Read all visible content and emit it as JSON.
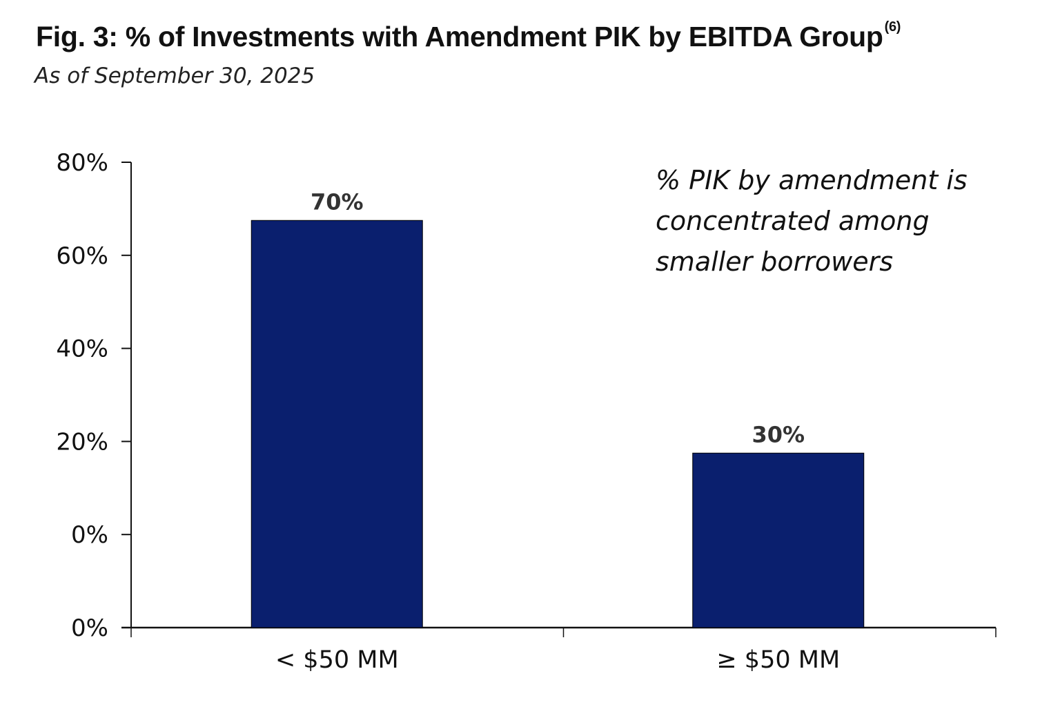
{
  "chart_data": {
    "type": "bar",
    "title": "Fig. 3: % of Investments with Amendment PIK by EBITDA Group",
    "title_superscript": "(6)",
    "subtitle": "As of September 30, 2025",
    "categories": [
      "< $50 MM",
      "≥ $50 MM"
    ],
    "values": [
      70,
      30
    ],
    "data_labels": [
      "70%",
      "30%"
    ],
    "y_tick_labels": [
      "80%",
      "60%",
      "40%",
      "20%",
      "0%",
      "0%"
    ],
    "ylim": [
      0,
      80
    ],
    "xlabel": "",
    "ylabel": "",
    "grid": false,
    "annotation": [
      "% PIK by amendment is",
      "concentrated among",
      "smaller borrowers"
    ],
    "colors": {
      "bar": "#0a1f6e",
      "axis": "#111111"
    }
  }
}
